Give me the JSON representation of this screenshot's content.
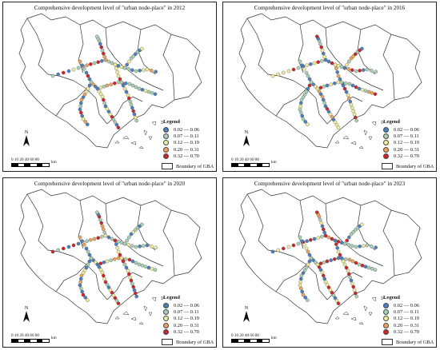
{
  "panels": [
    {
      "title": "Comprehensive development level of \"urban node-place\" in 2012"
    },
    {
      "title": "Comprehensive development level of \"urban node-place\" in 2016"
    },
    {
      "title": "Comprehensive development level of \"urban node-place\" in 2020"
    },
    {
      "title": "Comprehensive development level of \"urban node-place\" in 2023"
    }
  ],
  "legend": {
    "title": "Legend",
    "classes": [
      {
        "label": "0.02 — 0.06",
        "color": "#4a7fc0"
      },
      {
        "label": "0.07 — 0.11",
        "color": "#a9d2b4"
      },
      {
        "label": "0.12 — 0.19",
        "color": "#f1ed9b"
      },
      {
        "label": "0.20 — 0.31",
        "color": "#f0a35c"
      },
      {
        "label": "0.32 — 0.70",
        "color": "#d2232a"
      }
    ],
    "boundary_label": "Boundary of GBA"
  },
  "north_label": "N",
  "scale": {
    "ticks": "0 10 20   40   60   80",
    "unit": "km"
  }
}
